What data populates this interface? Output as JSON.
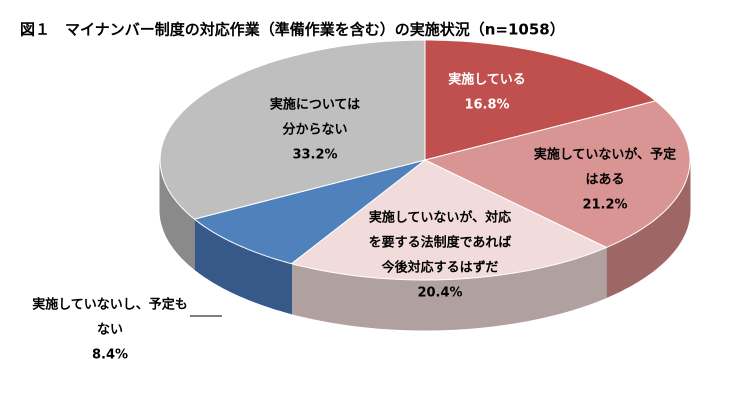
{
  "chart_data": {
    "type": "pie3d",
    "title": "図１　マイナンバー制度の対応作業（準備作業を含む）の実施状況（n=1058）",
    "categories": [
      [
        "実施している"
      ],
      [
        "実施していないが、予定",
        "はある"
      ],
      [
        "実施していないが、対応",
        "を要する法制度であれば",
        "今後対応するはずだ"
      ],
      [
        "実施していないし、予定も",
        "ない"
      ],
      [
        "実施については",
        "分からない"
      ]
    ],
    "values": [
      16.8,
      21.2,
      20.4,
      8.4,
      33.2
    ],
    "value_labels": [
      "16.8%",
      "21.2%",
      "20.4%",
      "8.4%",
      "33.2%"
    ],
    "colors": [
      "#c0504d",
      "#d99594",
      "#f2dcdb",
      "#4f81bd",
      "#bfbfbf"
    ],
    "side_colors": [
      "#8c3836",
      "#9e6766",
      "#b0a09f",
      "#37598a",
      "#8a8a8a"
    ]
  }
}
